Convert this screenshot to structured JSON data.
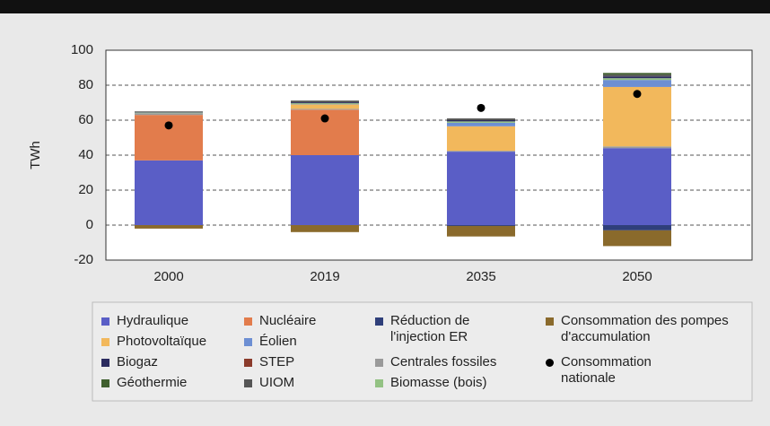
{
  "chart_data": {
    "type": "bar",
    "stacked": true,
    "y_label": "TWh",
    "categories": [
      "2000",
      "2019",
      "2035",
      "2050"
    ],
    "ylim": [
      -20,
      100
    ],
    "yticks": [
      -20,
      0,
      20,
      40,
      60,
      80,
      100
    ],
    "grid": true,
    "series": [
      {
        "name": "Hydraulique",
        "color": "#5a5ec6",
        "values": [
          37,
          40,
          42,
          44
        ]
      },
      {
        "name": "Nucléaire",
        "color": "#e27c4c",
        "values": [
          26,
          26,
          0,
          0
        ]
      },
      {
        "name": "Centrales fossiles",
        "color": "#9a9a9a",
        "values": [
          1,
          0.5,
          0.5,
          1
        ]
      },
      {
        "name": "Photovoltaïque",
        "color": "#f2b85c",
        "values": [
          0,
          2.5,
          14,
          34
        ]
      },
      {
        "name": "Éolien",
        "color": "#6d8fd3",
        "values": [
          0,
          0.2,
          2,
          4
        ]
      },
      {
        "name": "Biomasse (bois)",
        "color": "#93c283",
        "values": [
          0.3,
          0.5,
          0.8,
          1
        ]
      },
      {
        "name": "Biogaz",
        "color": "#2b2b5f",
        "values": [
          0.2,
          0.5,
          0.7,
          1
        ]
      },
      {
        "name": "UIOM",
        "color": "#555555",
        "values": [
          0.5,
          1,
          1,
          1
        ]
      },
      {
        "name": "STEP",
        "color": "#8b3b2b",
        "values": [
          0,
          0,
          0,
          0
        ]
      },
      {
        "name": "Géothermie",
        "color": "#3f5f2e",
        "values": [
          0,
          0,
          0,
          1
        ]
      },
      {
        "name": "Réduction de l'injection ER",
        "color": "#2f3f7a",
        "values": [
          0,
          0,
          -0.5,
          -3
        ]
      },
      {
        "name": "Consommation des pompes d'accumulation",
        "color": "#8a6a2c",
        "values": [
          -2,
          -4,
          -6,
          -9
        ]
      }
    ],
    "points": {
      "name": "Consommation nationale",
      "color": "#000000",
      "values": [
        57,
        61,
        67,
        75
      ]
    }
  }
}
